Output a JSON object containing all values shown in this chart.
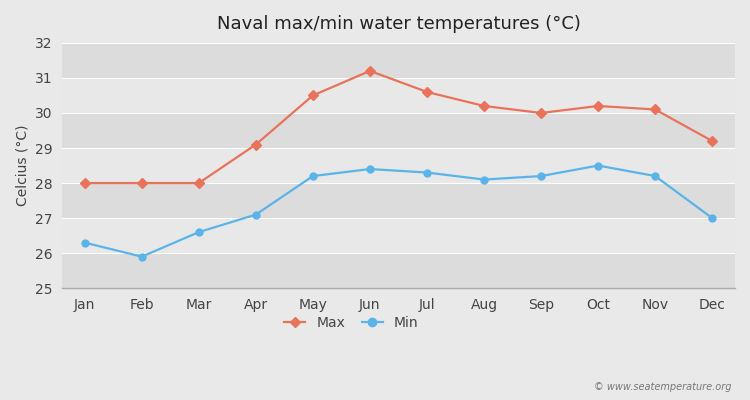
{
  "title": "Naval max/min water temperatures (°C)",
  "ylabel": "Celcius (°C)",
  "months": [
    "Jan",
    "Feb",
    "Mar",
    "Apr",
    "May",
    "Jun",
    "Jul",
    "Aug",
    "Sep",
    "Oct",
    "Nov",
    "Dec"
  ],
  "max_values": [
    28.0,
    28.0,
    28.0,
    29.1,
    30.5,
    31.2,
    30.6,
    30.2,
    30.0,
    30.2,
    30.1,
    29.2
  ],
  "min_values": [
    26.3,
    25.9,
    26.6,
    27.1,
    28.2,
    28.4,
    28.3,
    28.1,
    28.2,
    28.5,
    28.2,
    27.0
  ],
  "max_color": "#e8735a",
  "min_color": "#5ab4e8",
  "ylim": [
    25,
    32
  ],
  "yticks": [
    25,
    26,
    27,
    28,
    29,
    30,
    31,
    32
  ],
  "figure_bg": "#e9e9e9",
  "band_colors": [
    "#dcdcdc",
    "#e8e8e8"
  ],
  "grid_line_color": "#ffffff",
  "watermark": "© www.seatemperature.org",
  "legend_max": "Max",
  "legend_min": "Min",
  "title_fontsize": 13,
  "axis_fontsize": 10,
  "tick_fontsize": 10
}
